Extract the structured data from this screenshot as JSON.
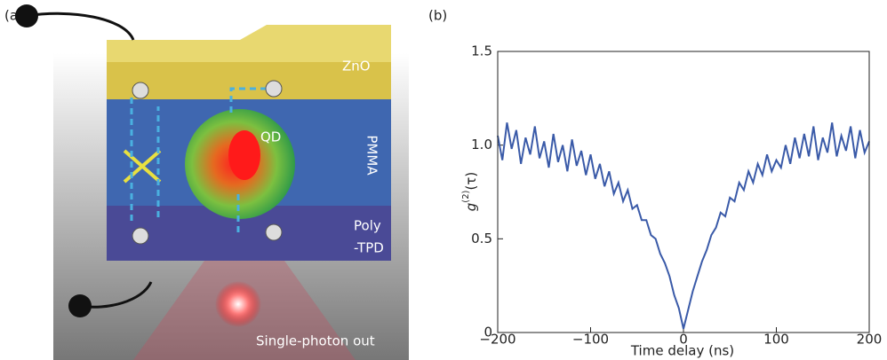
{
  "panel_labels": [
    "(a)",
    "(b)"
  ],
  "diagram": {
    "layers": [
      "ZnO",
      "PMMA",
      "Poly",
      "-TPD"
    ],
    "dot_label": "QD",
    "output_label": "Single-photon out"
  },
  "chart_data": {
    "type": "line",
    "xlabel": "Time delay (ns)",
    "ylabel": {
      "base": "g",
      "sup": "(2)",
      "arg": "(τ)"
    },
    "x": [
      -200,
      -195,
      -190,
      -185,
      -180,
      -175,
      -170,
      -165,
      -160,
      -155,
      -150,
      -145,
      -140,
      -135,
      -130,
      -125,
      -120,
      -115,
      -110,
      -105,
      -100,
      -95,
      -90,
      -85,
      -80,
      -75,
      -70,
      -65,
      -60,
      -55,
      -50,
      -45,
      -40,
      -35,
      -30,
      -25,
      -20,
      -15,
      -10,
      -5,
      0,
      5,
      10,
      15,
      20,
      25,
      30,
      35,
      40,
      45,
      50,
      55,
      60,
      65,
      70,
      75,
      80,
      85,
      90,
      95,
      100,
      105,
      110,
      115,
      120,
      125,
      130,
      135,
      140,
      145,
      150,
      155,
      160,
      165,
      170,
      175,
      180,
      185,
      190,
      195,
      200
    ],
    "series": [
      {
        "color": "#3a5aa8",
        "values": [
          1.05,
          0.92,
          1.12,
          0.98,
          1.08,
          0.9,
          1.04,
          0.95,
          1.1,
          0.93,
          1.02,
          0.88,
          1.06,
          0.91,
          1.0,
          0.86,
          1.03,
          0.89,
          0.97,
          0.84,
          0.95,
          0.82,
          0.9,
          0.78,
          0.86,
          0.74,
          0.8,
          0.7,
          0.76,
          0.66,
          0.68,
          0.6,
          0.6,
          0.52,
          0.5,
          0.42,
          0.37,
          0.3,
          0.2,
          0.13,
          0.02,
          0.12,
          0.22,
          0.3,
          0.38,
          0.44,
          0.52,
          0.56,
          0.64,
          0.62,
          0.72,
          0.7,
          0.8,
          0.76,
          0.86,
          0.8,
          0.9,
          0.84,
          0.95,
          0.86,
          0.92,
          0.88,
          1.0,
          0.9,
          1.04,
          0.93,
          1.06,
          0.94,
          1.1,
          0.92,
          1.04,
          0.96,
          1.12,
          0.94,
          1.05,
          0.97,
          1.1,
          0.93,
          1.08,
          0.96,
          1.02
        ]
      }
    ],
    "xlim": [
      -200,
      200
    ],
    "xticks": [
      {
        "value": -200,
        "label": "−200"
      },
      {
        "value": -100,
        "label": "−100"
      },
      0,
      100,
      200
    ],
    "ylim": [
      0,
      1.5
    ],
    "yticks": [
      0,
      0.5,
      {
        "value": 1,
        "label": "1.0"
      },
      1.5
    ]
  }
}
